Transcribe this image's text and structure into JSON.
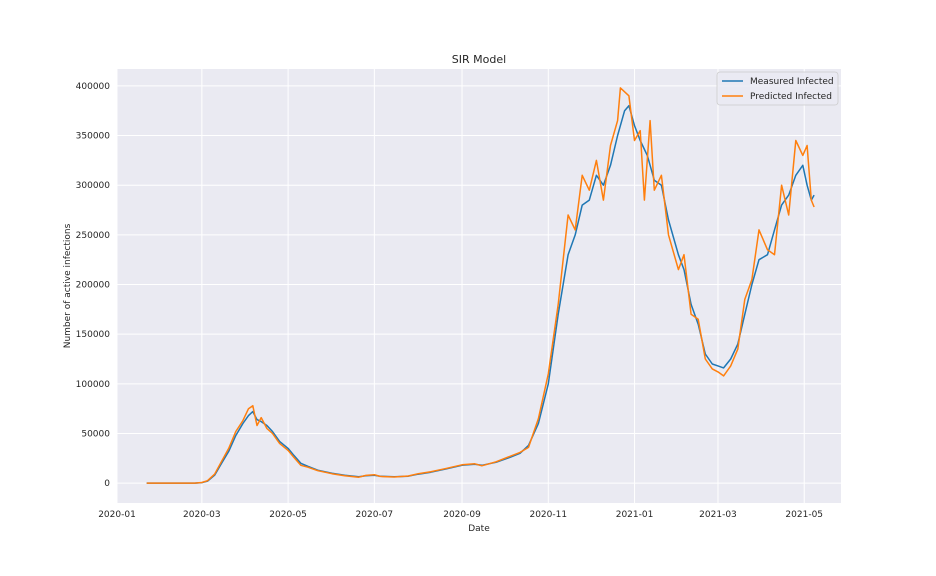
{
  "chart_data": {
    "type": "line",
    "title": "SIR Model",
    "xlabel": "Date",
    "ylabel": "Number of active infections",
    "grid": true,
    "legend_position": "top-right",
    "xlim": [
      "2020-01-01",
      "2021-05-27"
    ],
    "ylim": [
      -20000,
      417000
    ],
    "x_ticks": [
      "2020-01",
      "2020-03",
      "2020-05",
      "2020-07",
      "2020-09",
      "2020-11",
      "2021-01",
      "2021-03",
      "2021-05"
    ],
    "y_ticks": [
      0,
      50000,
      100000,
      150000,
      200000,
      250000,
      300000,
      350000,
      400000
    ],
    "series": [
      {
        "name": "Measured Infected",
        "color": "#1f77b4",
        "points": [
          [
            "2020-01-22",
            0
          ],
          [
            "2020-02-10",
            0
          ],
          [
            "2020-02-25",
            0
          ],
          [
            "2020-03-01",
            500
          ],
          [
            "2020-03-05",
            2000
          ],
          [
            "2020-03-10",
            8000
          ],
          [
            "2020-03-15",
            20000
          ],
          [
            "2020-03-20",
            32000
          ],
          [
            "2020-03-25",
            48000
          ],
          [
            "2020-03-30",
            60000
          ],
          [
            "2020-04-03",
            68000
          ],
          [
            "2020-04-06",
            72000
          ],
          [
            "2020-04-09",
            64000
          ],
          [
            "2020-04-12",
            62000
          ],
          [
            "2020-04-16",
            58000
          ],
          [
            "2020-04-20",
            52000
          ],
          [
            "2020-04-25",
            42000
          ],
          [
            "2020-05-01",
            35000
          ],
          [
            "2020-05-05",
            28000
          ],
          [
            "2020-05-10",
            20000
          ],
          [
            "2020-05-15",
            17000
          ],
          [
            "2020-05-22",
            13000
          ],
          [
            "2020-06-01",
            10000
          ],
          [
            "2020-06-10",
            8000
          ],
          [
            "2020-06-20",
            6500
          ],
          [
            "2020-06-25",
            7500
          ],
          [
            "2020-07-01",
            8000
          ],
          [
            "2020-07-05",
            7000
          ],
          [
            "2020-07-15",
            6500
          ],
          [
            "2020-07-25",
            7000
          ],
          [
            "2020-08-01",
            9000
          ],
          [
            "2020-08-10",
            11000
          ],
          [
            "2020-08-20",
            14000
          ],
          [
            "2020-09-01",
            18000
          ],
          [
            "2020-09-10",
            19000
          ],
          [
            "2020-09-15",
            18000
          ],
          [
            "2020-09-25",
            21000
          ],
          [
            "2020-10-05",
            26000
          ],
          [
            "2020-10-12",
            30000
          ],
          [
            "2020-10-18",
            38000
          ],
          [
            "2020-10-25",
            60000
          ],
          [
            "2020-11-01",
            100000
          ],
          [
            "2020-11-08",
            170000
          ],
          [
            "2020-11-15",
            230000
          ],
          [
            "2020-11-20",
            250000
          ],
          [
            "2020-11-25",
            280000
          ],
          [
            "2020-11-30",
            285000
          ],
          [
            "2020-12-05",
            310000
          ],
          [
            "2020-12-10",
            300000
          ],
          [
            "2020-12-15",
            320000
          ],
          [
            "2020-12-20",
            350000
          ],
          [
            "2020-12-25",
            375000
          ],
          [
            "2020-12-28",
            380000
          ],
          [
            "2021-01-01",
            360000
          ],
          [
            "2021-01-05",
            345000
          ],
          [
            "2021-01-10",
            330000
          ],
          [
            "2021-01-15",
            305000
          ],
          [
            "2021-01-20",
            300000
          ],
          [
            "2021-01-25",
            265000
          ],
          [
            "2021-02-01",
            230000
          ],
          [
            "2021-02-05",
            215000
          ],
          [
            "2021-02-10",
            180000
          ],
          [
            "2021-02-15",
            160000
          ],
          [
            "2021-02-20",
            130000
          ],
          [
            "2021-02-25",
            120000
          ],
          [
            "2021-03-01",
            118000
          ],
          [
            "2021-03-05",
            116000
          ],
          [
            "2021-03-10",
            125000
          ],
          [
            "2021-03-15",
            140000
          ],
          [
            "2021-03-20",
            170000
          ],
          [
            "2021-03-25",
            200000
          ],
          [
            "2021-03-30",
            225000
          ],
          [
            "2021-04-05",
            230000
          ],
          [
            "2021-04-10",
            255000
          ],
          [
            "2021-04-15",
            280000
          ],
          [
            "2021-04-20",
            290000
          ],
          [
            "2021-04-25",
            310000
          ],
          [
            "2021-04-30",
            320000
          ],
          [
            "2021-05-03",
            300000
          ],
          [
            "2021-05-06",
            285000
          ],
          [
            "2021-05-08",
            290000
          ]
        ]
      },
      {
        "name": "Predicted Infected",
        "color": "#ff7f0e",
        "points": [
          [
            "2020-01-22",
            0
          ],
          [
            "2020-02-10",
            0
          ],
          [
            "2020-02-25",
            0
          ],
          [
            "2020-03-01",
            600
          ],
          [
            "2020-03-05",
            2500
          ],
          [
            "2020-03-10",
            9000
          ],
          [
            "2020-03-15",
            22000
          ],
          [
            "2020-03-20",
            35000
          ],
          [
            "2020-03-25",
            52000
          ],
          [
            "2020-03-30",
            63000
          ],
          [
            "2020-04-03",
            75000
          ],
          [
            "2020-04-06",
            78000
          ],
          [
            "2020-04-09",
            58000
          ],
          [
            "2020-04-12",
            66000
          ],
          [
            "2020-04-16",
            55000
          ],
          [
            "2020-04-20",
            50000
          ],
          [
            "2020-04-25",
            40000
          ],
          [
            "2020-05-01",
            33000
          ],
          [
            "2020-05-05",
            26000
          ],
          [
            "2020-05-10",
            18000
          ],
          [
            "2020-05-15",
            16000
          ],
          [
            "2020-05-22",
            12500
          ],
          [
            "2020-06-01",
            9500
          ],
          [
            "2020-06-10",
            7500
          ],
          [
            "2020-06-20",
            6000
          ],
          [
            "2020-06-25",
            7800
          ],
          [
            "2020-07-01",
            8500
          ],
          [
            "2020-07-05",
            6800
          ],
          [
            "2020-07-15",
            6200
          ],
          [
            "2020-07-25",
            7200
          ],
          [
            "2020-08-01",
            9500
          ],
          [
            "2020-08-10",
            11500
          ],
          [
            "2020-08-20",
            14500
          ],
          [
            "2020-09-01",
            18500
          ],
          [
            "2020-09-10",
            19500
          ],
          [
            "2020-09-15",
            17500
          ],
          [
            "2020-09-25",
            21500
          ],
          [
            "2020-10-05",
            27000
          ],
          [
            "2020-10-12",
            31000
          ],
          [
            "2020-10-18",
            36000
          ],
          [
            "2020-10-25",
            65000
          ],
          [
            "2020-11-01",
            110000
          ],
          [
            "2020-11-08",
            180000
          ],
          [
            "2020-11-15",
            270000
          ],
          [
            "2020-11-20",
            255000
          ],
          [
            "2020-11-25",
            310000
          ],
          [
            "2020-11-30",
            295000
          ],
          [
            "2020-12-05",
            325000
          ],
          [
            "2020-12-10",
            285000
          ],
          [
            "2020-12-15",
            340000
          ],
          [
            "2020-12-20",
            365000
          ],
          [
            "2020-12-22",
            398000
          ],
          [
            "2020-12-28",
            390000
          ],
          [
            "2021-01-01",
            345000
          ],
          [
            "2021-01-05",
            355000
          ],
          [
            "2021-01-08",
            285000
          ],
          [
            "2021-01-12",
            365000
          ],
          [
            "2021-01-15",
            295000
          ],
          [
            "2021-01-20",
            310000
          ],
          [
            "2021-01-25",
            250000
          ],
          [
            "2021-02-01",
            215000
          ],
          [
            "2021-02-05",
            230000
          ],
          [
            "2021-02-10",
            170000
          ],
          [
            "2021-02-15",
            165000
          ],
          [
            "2021-02-20",
            125000
          ],
          [
            "2021-02-25",
            115000
          ],
          [
            "2021-03-01",
            112000
          ],
          [
            "2021-03-05",
            108000
          ],
          [
            "2021-03-10",
            118000
          ],
          [
            "2021-03-15",
            135000
          ],
          [
            "2021-03-20",
            185000
          ],
          [
            "2021-03-25",
            205000
          ],
          [
            "2021-03-30",
            255000
          ],
          [
            "2021-04-05",
            235000
          ],
          [
            "2021-04-10",
            230000
          ],
          [
            "2021-04-15",
            300000
          ],
          [
            "2021-04-20",
            270000
          ],
          [
            "2021-04-25",
            345000
          ],
          [
            "2021-04-30",
            330000
          ],
          [
            "2021-05-03",
            340000
          ],
          [
            "2021-05-06",
            285000
          ],
          [
            "2021-05-08",
            278000
          ]
        ]
      }
    ]
  }
}
